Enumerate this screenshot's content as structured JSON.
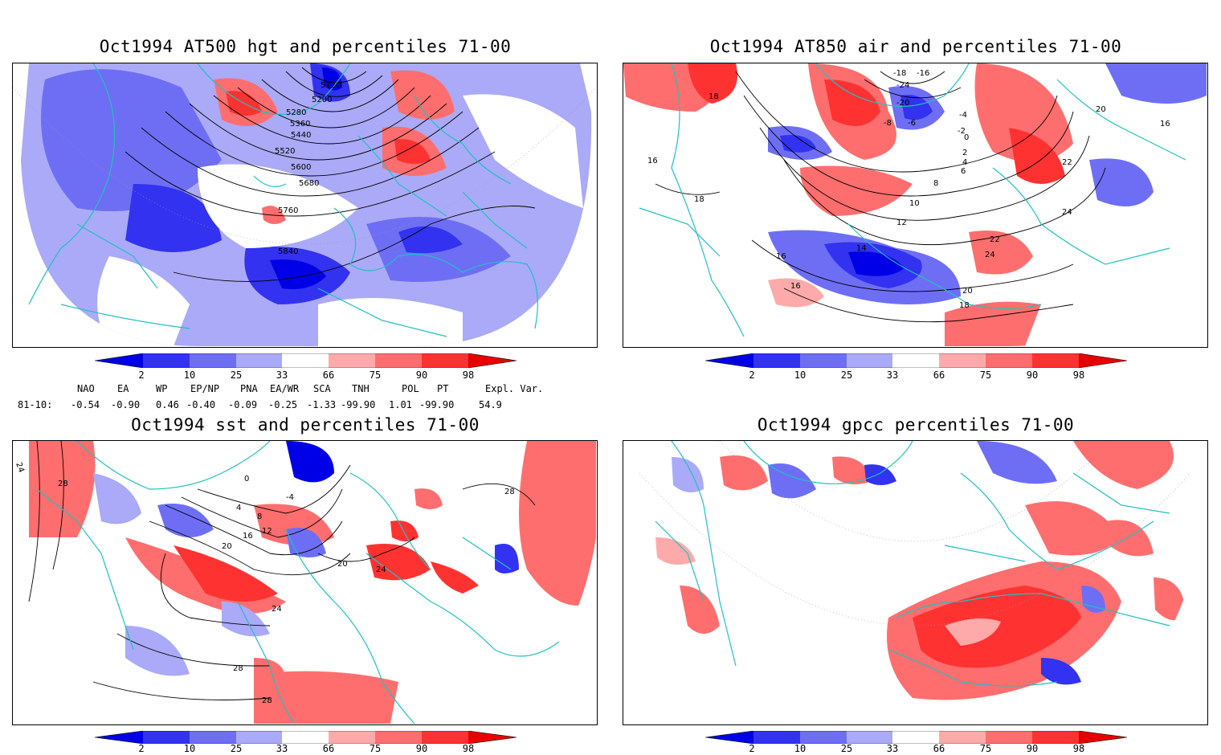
{
  "panels": [
    {
      "title": "Oct1994 AT500 hgt and percentiles 71-00",
      "contour_labels": [
        "5120",
        "5200",
        "5280",
        "5360",
        "5440",
        "5520",
        "5600",
        "5680",
        "5760",
        "5840"
      ]
    },
    {
      "title": "Oct1994 AT850 air and percentiles 71-00",
      "contour_labels": [
        "-18",
        "-16",
        "-24",
        "-20",
        "-8",
        "-6",
        "-4",
        "-2",
        "0",
        "2",
        "4",
        "6",
        "8",
        "10",
        "12",
        "14",
        "16",
        "16",
        "16",
        "18",
        "18",
        "18",
        "20",
        "20",
        "22",
        "22",
        "24",
        "24",
        "16"
      ]
    },
    {
      "title": "Oct1994 sst and percentiles 71-00",
      "contour_labels": [
        "24",
        "28",
        "-4",
        "0",
        "4",
        "8",
        "12",
        "16",
        "20",
        "20",
        "24",
        "24",
        "28",
        "28",
        "28"
      ]
    },
    {
      "title": "Oct1994 gpcc percentiles 71-00",
      "contour_labels": []
    }
  ],
  "colorbar": {
    "labels": [
      "2",
      "10",
      "25",
      "33",
      "66",
      "75",
      "90",
      "98"
    ],
    "colors": [
      "#0000e6",
      "#3232f0",
      "#6e6ef5",
      "#aaaaf8",
      "#ffffff",
      "#ffaaaa",
      "#ff6e6e",
      "#ff3232",
      "#e60000"
    ]
  },
  "indices": {
    "headers": [
      "NAO",
      "EA",
      "WP",
      "EP/NP",
      "PNA",
      "EA/WR",
      "SCA",
      "TNH",
      "POL",
      "PT",
      "Expl. Var."
    ],
    "row_label": "81-10:",
    "values": [
      "-0.54",
      "-0.90",
      "0.46",
      "-0.40",
      "-0.09",
      "-0.25",
      "-1.33",
      "-99.90",
      "1.01",
      "-99.90",
      "54.9"
    ]
  },
  "colors": {
    "coast": "#20c0c0",
    "blue": "#3232f0",
    "lightblue": "#aaaaf8",
    "red": "#ff3232",
    "lightred": "#ffaaaa"
  }
}
